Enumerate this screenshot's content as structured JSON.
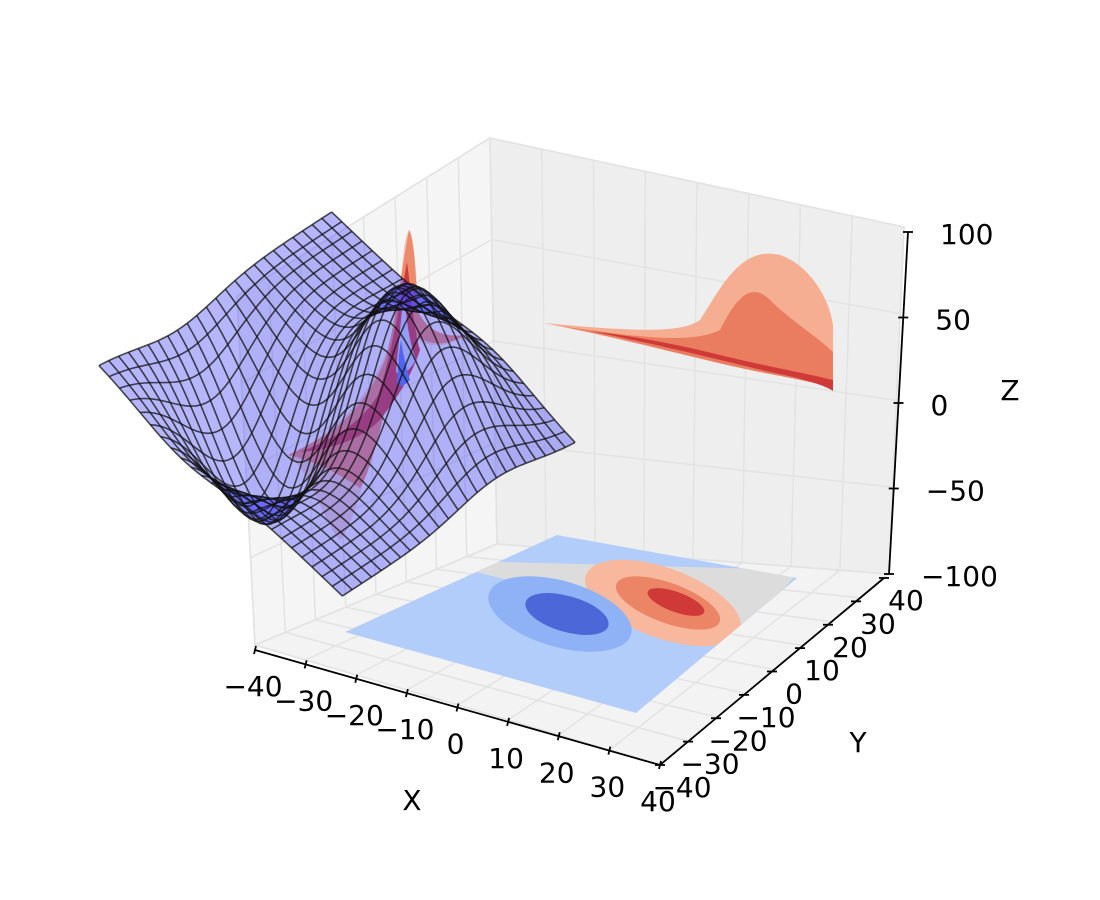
{
  "chart_data": {
    "type": "surface3d",
    "xlabel": "X",
    "ylabel": "Y",
    "zlabel": "Z",
    "xlim": [
      -40,
      40
    ],
    "ylim": [
      -40,
      40
    ],
    "zlim": [
      -100,
      100
    ],
    "xticks": [
      "−40",
      "−30",
      "−20",
      "−10",
      "0",
      "10",
      "20",
      "30",
      "40"
    ],
    "yticks": [
      "−40",
      "−30",
      "−20",
      "−10",
      "0",
      "10",
      "20",
      "30",
      "40"
    ],
    "zticks": [
      "−100",
      "−50",
      "0",
      "50",
      "100"
    ],
    "grid": true,
    "surface": {
      "function": "gaussian_dipole",
      "peak": {
        "x": 10,
        "y": 10,
        "z": 80
      },
      "trough": {
        "x": -10,
        "y": -10,
        "z": -80
      },
      "color": "#4040ff",
      "wireframe_color": "#111111"
    },
    "contour_projections": [
      "z-bottom",
      "x-wall",
      "y-wall"
    ],
    "colormap": "coolwarm"
  }
}
